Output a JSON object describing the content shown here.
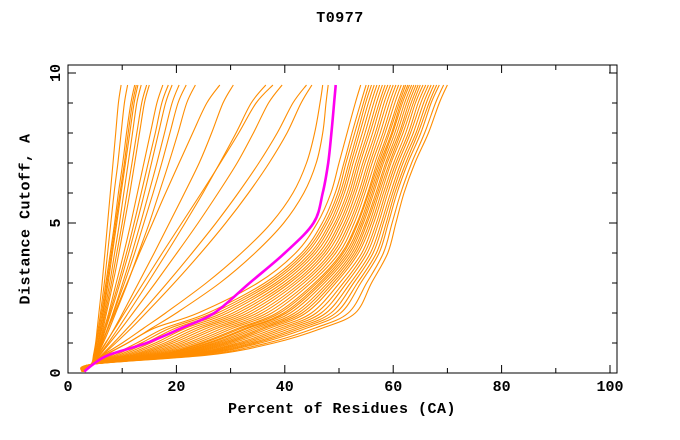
{
  "title": "T0977",
  "chart_data": {
    "type": "line",
    "title": "T0977",
    "xlabel": "Percent of Residues (CA)",
    "ylabel": "Distance Cutoff, A",
    "xlim": [
      0,
      100
    ],
    "ylim": [
      0,
      10
    ],
    "x_ticks_major": [
      0,
      20,
      40,
      60,
      80,
      100
    ],
    "x_ticks_minor": [
      10,
      30,
      50,
      70,
      90
    ],
    "y_ticks_major": [
      0,
      5,
      10
    ],
    "y_ticks_minor": [
      1,
      2,
      3,
      4,
      6,
      7,
      8,
      9
    ],
    "grid": false,
    "legend_position": "none",
    "colors": {
      "model_line": "#ff8d00",
      "highlight_line": "#ff00f0",
      "axis": "#000000",
      "background": "#ffffff"
    },
    "y_levels": [
      0.05,
      0.3,
      0.6,
      1,
      1.5,
      2,
      3,
      4,
      5,
      6,
      7,
      8,
      9,
      9.6
    ],
    "highlight_series": {
      "name": "highlighted-model",
      "x": [
        3.0,
        4.7,
        7.5,
        14.5,
        21.0,
        27.0,
        33.5,
        40.0,
        45.3,
        47.0,
        48.0,
        48.6,
        49.1,
        49.4
      ]
    },
    "model_series": [
      {
        "x": [
          2.6,
          4.3,
          4.7,
          5.1,
          5.4,
          5.7,
          6.3,
          6.8,
          7.3,
          7.8,
          8.3,
          8.8,
          9.3,
          9.8
        ]
      },
      {
        "x": [
          2.8,
          4.4,
          4.8,
          5.2,
          5.6,
          6.0,
          6.7,
          7.3,
          7.9,
          8.5,
          9.2,
          9.8,
          10.4,
          11.0
        ]
      },
      {
        "x": [
          2.6,
          4.3,
          4.8,
          5.3,
          5.8,
          6.2,
          7.0,
          7.8,
          8.6,
          9.3,
          10.1,
          10.8,
          11.6,
          12.3
        ]
      },
      {
        "x": [
          2.9,
          4.5,
          5.0,
          5.5,
          6.0,
          6.4,
          7.2,
          8.0,
          8.8,
          9.6,
          10.4,
          11.1,
          11.9,
          12.6
        ]
      },
      {
        "x": [
          2.7,
          4.4,
          4.9,
          5.5,
          6.0,
          6.5,
          7.4,
          8.2,
          9.0,
          9.8,
          10.6,
          11.4,
          12.2,
          12.9
        ]
      },
      {
        "x": [
          2.8,
          4.5,
          5.0,
          5.6,
          6.2,
          6.7,
          7.7,
          8.6,
          9.5,
          10.3,
          11.1,
          11.9,
          12.7,
          13.5
        ]
      },
      {
        "x": [
          2.6,
          4.4,
          5.0,
          5.6,
          6.3,
          6.9,
          8.0,
          9.0,
          10.0,
          10.9,
          11.8,
          12.7,
          13.6,
          14.5
        ]
      },
      {
        "x": [
          2.9,
          4.6,
          5.2,
          5.8,
          6.5,
          7.1,
          8.3,
          9.4,
          10.4,
          11.4,
          12.3,
          13.2,
          14.1,
          15.0
        ]
      },
      {
        "x": [
          2.7,
          4.4,
          5.1,
          5.9,
          6.7,
          7.5,
          8.9,
          10.3,
          11.6,
          12.8,
          14.0,
          15.2,
          16.4,
          17.5
        ]
      },
      {
        "x": [
          2.8,
          4.5,
          5.2,
          6.0,
          6.9,
          7.7,
          9.3,
          10.8,
          12.2,
          13.5,
          14.8,
          16.1,
          17.3,
          18.5
        ]
      },
      {
        "x": [
          2.6,
          4.4,
          5.2,
          6.1,
          7.0,
          7.9,
          9.6,
          11.2,
          12.7,
          14.1,
          15.4,
          16.7,
          18.0,
          19.2
        ]
      },
      {
        "x": [
          2.9,
          4.6,
          5.4,
          6.3,
          7.3,
          8.3,
          10.1,
          11.8,
          13.4,
          14.9,
          16.4,
          17.8,
          19.2,
          20.5
        ]
      },
      {
        "x": [
          2.7,
          4.5,
          5.3,
          6.3,
          7.4,
          8.4,
          10.4,
          12.3,
          14.0,
          15.7,
          17.3,
          18.8,
          20.3,
          21.8
        ]
      },
      {
        "x": [
          2.8,
          4.5,
          5.4,
          6.5,
          7.7,
          8.8,
          11.0,
          13.0,
          15.0,
          16.8,
          18.6,
          20.3,
          21.9,
          23.5
        ]
      },
      {
        "x": [
          2.6,
          4.4,
          5.2,
          6.2,
          7.4,
          8.6,
          10.9,
          13.2,
          15.6,
          18.0,
          20.5,
          23.0,
          25.6,
          28.0
        ]
      },
      {
        "x": [
          2.8,
          4.6,
          5.6,
          7.0,
          8.6,
          10.1,
          13.0,
          15.9,
          18.7,
          21.5,
          24.2,
          26.5,
          28.6,
          30.5
        ]
      },
      {
        "x": [
          2.9,
          4.7,
          5.8,
          7.4,
          9.3,
          11.1,
          14.7,
          18.2,
          21.6,
          24.9,
          28.0,
          31.0,
          33.8,
          36.5
        ]
      },
      {
        "x": [
          2.6,
          4.5,
          5.5,
          6.9,
          8.7,
          10.4,
          13.9,
          17.4,
          21.0,
          24.6,
          28.1,
          31.5,
          34.7,
          37.8
        ]
      },
      {
        "x": [
          2.8,
          4.6,
          5.9,
          7.7,
          9.9,
          12.0,
          16.1,
          20.1,
          24.0,
          27.7,
          31.2,
          34.2,
          37.0,
          39.5
        ]
      },
      {
        "x": [
          2.7,
          4.6,
          6.2,
          8.4,
          11.0,
          13.5,
          18.3,
          22.9,
          27.3,
          31.4,
          35.2,
          38.6,
          41.5,
          44.0
        ]
      },
      {
        "x": [
          2.9,
          4.7,
          6.4,
          8.8,
          11.7,
          14.4,
          19.6,
          24.5,
          29.1,
          33.3,
          37.1,
          40.4,
          43.0,
          45.0
        ]
      },
      {
        "x": [
          2.8,
          4.6,
          6.5,
          10.0,
          14.0,
          18.0,
          25.5,
          32.0,
          37.5,
          41.5,
          44.0,
          45.5,
          46.5,
          47.0
        ]
      },
      {
        "x": [
          2.6,
          4.5,
          6.8,
          11.0,
          15.5,
          20.0,
          28.0,
          34.5,
          39.8,
          43.5,
          45.8,
          47.0,
          47.6,
          48.0
        ]
      },
      {
        "x": [
          2.6,
          4.3,
          7.0,
          11.0,
          16.0,
          24.0,
          35.0,
          42.0,
          46.0,
          48.5,
          50.0,
          51.5,
          53.0,
          54.0
        ]
      },
      {
        "x": [
          2.8,
          4.4,
          8.2,
          12.7,
          17.9,
          25.8,
          36.3,
          43.1,
          46.9,
          49.3,
          50.9,
          52.4,
          54.0,
          55.0
        ]
      },
      {
        "x": [
          2.5,
          4.3,
          8.8,
          13.5,
          18.9,
          26.7,
          37.0,
          43.6,
          47.4,
          49.8,
          51.3,
          52.9,
          54.5,
          55.5
        ]
      },
      {
        "x": [
          2.9,
          4.4,
          9.4,
          14.4,
          19.9,
          27.6,
          37.6,
          44.1,
          47.8,
          50.2,
          51.8,
          53.4,
          54.9,
          56.0
        ]
      },
      {
        "x": [
          2.6,
          4.4,
          10.0,
          15.2,
          20.8,
          28.5,
          38.3,
          44.7,
          48.3,
          50.6,
          52.2,
          53.8,
          55.4,
          56.5
        ]
      },
      {
        "x": [
          2.8,
          4.4,
          10.6,
          16.1,
          21.8,
          29.4,
          38.9,
          45.2,
          48.7,
          51.0,
          52.6,
          54.3,
          55.9,
          57.0
        ]
      },
      {
        "x": [
          2.5,
          4.4,
          11.2,
          16.9,
          22.8,
          30.4,
          39.6,
          45.7,
          49.2,
          51.5,
          53.1,
          54.8,
          56.4,
          57.5
        ]
      },
      {
        "x": [
          2.7,
          4.4,
          11.8,
          17.8,
          23.8,
          31.3,
          40.3,
          46.3,
          49.6,
          51.9,
          53.5,
          55.3,
          56.9,
          58.0
        ]
      },
      {
        "x": [
          3.0,
          4.4,
          12.3,
          18.6,
          24.7,
          32.2,
          40.9,
          46.8,
          50.1,
          52.3,
          53.9,
          55.7,
          57.4,
          58.5
        ]
      },
      {
        "x": [
          2.6,
          4.5,
          12.9,
          19.4,
          25.7,
          33.1,
          41.6,
          47.3,
          50.5,
          52.7,
          54.4,
          56.2,
          57.8,
          59.0
        ]
      },
      {
        "x": [
          2.8,
          4.5,
          13.5,
          20.3,
          26.7,
          34.0,
          42.2,
          47.8,
          51.0,
          53.1,
          54.8,
          56.7,
          58.3,
          59.5
        ]
      },
      {
        "x": [
          2.5,
          4.5,
          14.1,
          21.1,
          27.6,
          34.9,
          42.9,
          48.4,
          51.4,
          53.6,
          55.3,
          57.1,
          58.8,
          60.0
        ]
      },
      {
        "x": [
          2.9,
          4.5,
          14.7,
          22.0,
          28.6,
          35.8,
          43.5,
          48.9,
          51.9,
          54.0,
          55.7,
          57.6,
          59.3,
          60.5
        ]
      },
      {
        "x": [
          2.6,
          4.5,
          15.3,
          22.8,
          29.6,
          36.7,
          44.2,
          49.4,
          52.3,
          54.4,
          56.1,
          58.1,
          59.8,
          61.0
        ]
      },
      {
        "x": [
          2.8,
          4.5,
          15.9,
          23.7,
          30.5,
          37.6,
          44.8,
          50.0,
          52.8,
          54.8,
          56.6,
          58.5,
          60.3,
          61.5
        ]
      },
      {
        "x": [
          2.5,
          4.6,
          16.5,
          24.5,
          31.5,
          38.5,
          45.5,
          50.5,
          53.3,
          55.3,
          57.0,
          59.0,
          60.8,
          62.0
        ]
      },
      {
        "x": [
          2.9,
          4.6,
          16.9,
          25.0,
          32.1,
          39.1,
          45.9,
          50.8,
          53.5,
          55.5,
          57.3,
          59.3,
          61.1,
          62.3
        ]
      },
      {
        "x": [
          2.6,
          4.6,
          17.3,
          25.7,
          32.9,
          39.8,
          46.4,
          51.2,
          53.9,
          55.8,
          57.6,
          59.7,
          61.4,
          62.7
        ]
      },
      {
        "x": [
          2.8,
          4.6,
          17.7,
          26.2,
          33.4,
          40.3,
          46.8,
          51.6,
          54.2,
          56.1,
          57.9,
          59.9,
          61.7,
          63.0
        ]
      },
      {
        "x": [
          2.5,
          4.6,
          18.2,
          26.9,
          34.2,
          41.0,
          47.3,
          52.0,
          54.5,
          56.4,
          58.2,
          60.3,
          62.1,
          63.4
        ]
      },
      {
        "x": [
          2.9,
          4.6,
          18.6,
          27.5,
          35.0,
          41.8,
          47.9,
          52.4,
          54.9,
          56.8,
          58.6,
          60.7,
          62.5,
          63.8
        ]
      },
      {
        "x": [
          2.6,
          4.6,
          19.1,
          28.2,
          35.8,
          42.5,
          48.4,
          52.8,
          55.2,
          57.1,
          58.9,
          61.1,
          62.9,
          64.2
        ]
      },
      {
        "x": [
          2.8,
          4.6,
          19.6,
          28.9,
          36.5,
          43.2,
          48.9,
          53.2,
          55.6,
          57.4,
          59.3,
          61.4,
          63.3,
          64.6
        ]
      },
      {
        "x": [
          2.5,
          4.6,
          20.1,
          29.6,
          37.3,
          43.9,
          49.4,
          53.6,
          56.0,
          57.8,
          59.6,
          61.8,
          63.7,
          65.0
        ]
      },
      {
        "x": [
          2.9,
          4.7,
          20.7,
          30.4,
          38.3,
          44.9,
          50.1,
          54.2,
          56.4,
          58.2,
          60.1,
          62.3,
          64.1,
          65.5
        ]
      },
      {
        "x": [
          2.6,
          4.7,
          21.3,
          31.3,
          39.3,
          45.8,
          50.8,
          54.7,
          56.9,
          58.6,
          60.5,
          62.8,
          64.6,
          66.0
        ]
      },
      {
        "x": [
          2.8,
          4.7,
          21.8,
          32.1,
          40.2,
          46.7,
          51.4,
          55.2,
          57.3,
          59.0,
          60.9,
          63.2,
          65.1,
          66.5
        ]
      },
      {
        "x": [
          2.5,
          4.7,
          22.4,
          32.9,
          41.2,
          47.6,
          52.1,
          55.8,
          57.8,
          59.5,
          61.4,
          63.7,
          65.6,
          67.0
        ]
      },
      {
        "x": [
          2.9,
          4.7,
          23.0,
          33.8,
          42.2,
          48.5,
          52.7,
          56.3,
          58.2,
          59.9,
          61.8,
          64.2,
          66.1,
          67.5
        ]
      },
      {
        "x": [
          2.6,
          4.7,
          23.6,
          34.6,
          43.1,
          49.4,
          53.4,
          56.9,
          58.7,
          60.3,
          62.3,
          64.6,
          66.6,
          68.0
        ]
      },
      {
        "x": [
          2.8,
          4.7,
          24.2,
          35.5,
          44.1,
          50.3,
          54.0,
          57.4,
          59.1,
          60.7,
          62.7,
          65.1,
          67.0,
          68.5
        ]
      },
      {
        "x": [
          2.5,
          4.7,
          25.1,
          36.8,
          45.6,
          51.7,
          55.1,
          58.2,
          59.8,
          61.4,
          63.4,
          65.8,
          67.8,
          69.3
        ]
      },
      {
        "x": [
          2.9,
          4.8,
          26.0,
          38.0,
          47.0,
          53.0,
          56.0,
          59.0,
          60.5,
          62.0,
          64.0,
          66.5,
          68.5,
          70.0
        ]
      }
    ]
  }
}
